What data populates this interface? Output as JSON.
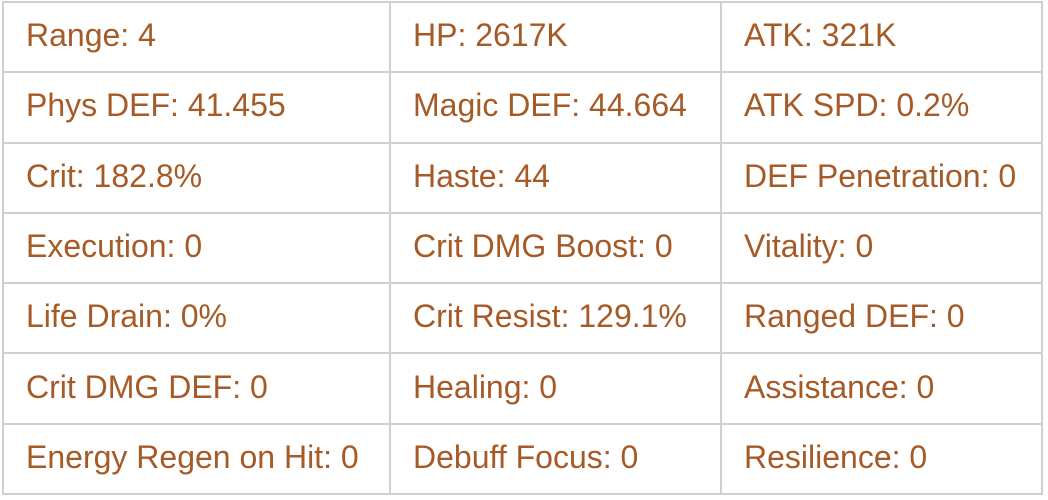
{
  "theme": {
    "text_color": "#a65a26",
    "grid_color": "#d0d0d0",
    "cell_background": "#ffffff"
  },
  "stats_table": {
    "rows": [
      {
        "cells": [
          {
            "label": "Range",
            "value": "4",
            "text": "Range: 4"
          },
          {
            "label": "HP",
            "value": "2617K",
            "text": "HP: 2617K"
          },
          {
            "label": "ATK",
            "value": "321K",
            "text": "ATK: 321K"
          }
        ]
      },
      {
        "cells": [
          {
            "label": "Phys DEF",
            "value": "41.455",
            "text": "Phys DEF: 41.455"
          },
          {
            "label": "Magic DEF",
            "value": "44.664",
            "text": "Magic DEF: 44.664"
          },
          {
            "label": "ATK SPD",
            "value": "0.2%",
            "text": "ATK SPD: 0.2%"
          }
        ]
      },
      {
        "cells": [
          {
            "label": "Crit",
            "value": "182.8%",
            "text": "Crit: 182.8%"
          },
          {
            "label": "Haste",
            "value": "44",
            "text": "Haste: 44"
          },
          {
            "label": "DEF Penetration",
            "value": "0",
            "text": "DEF Penetration: 0"
          }
        ]
      },
      {
        "cells": [
          {
            "label": "Execution",
            "value": "0",
            "text": "Execution: 0"
          },
          {
            "label": "Crit DMG Boost",
            "value": "0",
            "text": "Crit DMG Boost: 0"
          },
          {
            "label": "Vitality",
            "value": "0",
            "text": "Vitality: 0"
          }
        ]
      },
      {
        "cells": [
          {
            "label": "Life Drain",
            "value": "0%",
            "text": "Life Drain: 0%"
          },
          {
            "label": "Crit Resist",
            "value": "129.1%",
            "text": "Crit Resist: 129.1%"
          },
          {
            "label": "Ranged DEF",
            "value": "0",
            "text": "Ranged DEF: 0"
          }
        ]
      },
      {
        "cells": [
          {
            "label": "Crit DMG DEF",
            "value": "0",
            "text": "Crit DMG DEF: 0"
          },
          {
            "label": "Healing",
            "value": "0",
            "text": "Healing: 0"
          },
          {
            "label": "Assistance",
            "value": "0",
            "text": "Assistance: 0"
          }
        ]
      },
      {
        "cells": [
          {
            "label": "Energy Regen on Hit",
            "value": "0",
            "text": "Energy Regen on Hit: 0"
          },
          {
            "label": "Debuff Focus",
            "value": "0",
            "text": "Debuff Focus: 0"
          },
          {
            "label": "Resilience",
            "value": "0",
            "text": "Resilience: 0"
          }
        ]
      }
    ]
  }
}
